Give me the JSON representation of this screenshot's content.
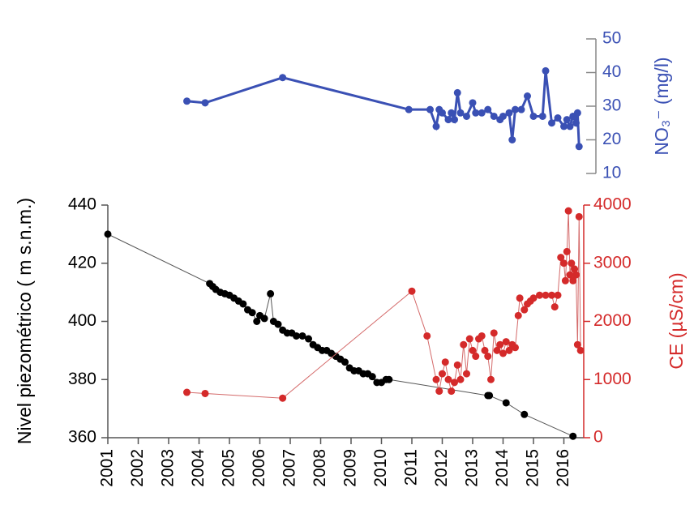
{
  "chart_data": [
    {
      "type": "line",
      "y_label": "NO₃⁻ (mg/l)",
      "xlim": [
        2001,
        2016.6
      ],
      "ylim": [
        10,
        50
      ],
      "yticks": [
        10,
        20,
        30,
        40,
        50
      ],
      "series": [
        {
          "name": "NO₃⁻",
          "color": "#3a50b4",
          "x": [
            2003.6,
            2004.2,
            2006.75,
            2010.9,
            2011.6,
            2011.8,
            2011.9,
            2012.0,
            2012.2,
            2012.3,
            2012.4,
            2012.5,
            2012.6,
            2012.8,
            2013.0,
            2013.1,
            2013.3,
            2013.5,
            2013.7,
            2013.9,
            2014.0,
            2014.2,
            2014.3,
            2014.4,
            2014.6,
            2014.8,
            2015.0,
            2015.3,
            2015.4,
            2015.6,
            2015.8,
            2016.0,
            2016.1,
            2016.2,
            2016.3,
            2016.4,
            2016.45,
            2016.5
          ],
          "values": [
            31.5,
            31,
            38.5,
            29,
            29,
            24,
            29,
            28,
            26,
            28,
            26,
            34,
            28,
            27,
            31,
            28,
            28,
            29,
            27,
            26,
            27,
            28,
            20,
            29,
            29,
            33,
            27,
            27,
            40.5,
            25,
            26.5,
            24,
            26,
            24,
            27,
            25,
            28,
            18
          ]
        }
      ]
    },
    {
      "type": "line",
      "y_label": "Nivel piezométrico ( m s.n.m.)",
      "y2_label": "CE (µS/cm)",
      "xlim": [
        2001,
        2016.6
      ],
      "xticks": [
        2001,
        2002,
        2003,
        2004,
        2005,
        2006,
        2007,
        2008,
        2009,
        2010,
        2011,
        2012,
        2013,
        2014,
        2015,
        2016
      ],
      "ylim": [
        360,
        440
      ],
      "yticks": [
        360,
        380,
        400,
        420,
        440
      ],
      "y2lim": [
        0,
        4000
      ],
      "y2ticks": [
        0,
        1000,
        2000,
        3000,
        4000
      ],
      "series": [
        {
          "name": "Nivel piezométrico",
          "color": "#000000",
          "line_color": "#555555",
          "x": [
            2001.0,
            2004.35,
            2004.45,
            2004.55,
            2004.7,
            2004.85,
            2005.0,
            2005.15,
            2005.3,
            2005.45,
            2005.6,
            2005.75,
            2005.9,
            2006.0,
            2006.15,
            2006.35,
            2006.45,
            2006.6,
            2006.75,
            2006.9,
            2007.05,
            2007.2,
            2007.4,
            2007.6,
            2007.75,
            2007.9,
            2008.05,
            2008.2,
            2008.35,
            2008.5,
            2008.65,
            2008.8,
            2008.95,
            2009.1,
            2009.25,
            2009.4,
            2009.55,
            2009.7,
            2009.85,
            2010.0,
            2010.15,
            2010.25,
            2013.5,
            2013.55,
            2014.1,
            2014.7,
            2016.3
          ],
          "values": [
            430,
            413,
            412,
            411,
            410,
            409.5,
            409,
            408,
            407,
            406,
            404,
            403,
            400,
            402,
            401,
            409.5,
            400,
            399,
            397,
            396,
            396,
            395,
            395,
            394,
            392,
            391,
            390,
            390,
            389,
            388,
            387,
            386,
            384,
            383,
            383,
            382,
            382,
            381,
            379,
            379,
            380,
            380,
            374.5,
            374.5,
            372,
            368,
            360.5
          ]
        },
        {
          "name": "CE",
          "color": "#d42a2a",
          "line_color": "#d46a6a",
          "axis": "y2",
          "x": [
            2003.6,
            2004.2,
            2006.75,
            2011.0,
            2011.5,
            2011.8,
            2011.9,
            2012.0,
            2012.1,
            2012.2,
            2012.3,
            2012.4,
            2012.5,
            2012.6,
            2012.7,
            2012.8,
            2012.9,
            2013.0,
            2013.1,
            2013.2,
            2013.3,
            2013.4,
            2013.5,
            2013.6,
            2013.7,
            2013.8,
            2013.9,
            2014.0,
            2014.1,
            2014.2,
            2014.3,
            2014.4,
            2014.5,
            2014.55,
            2014.7,
            2014.8,
            2014.9,
            2015.0,
            2015.2,
            2015.4,
            2015.6,
            2015.7,
            2015.8,
            2015.9,
            2016.0,
            2016.05,
            2016.1,
            2016.15,
            2016.2,
            2016.25,
            2016.3,
            2016.35,
            2016.4,
            2016.45,
            2016.5,
            2016.55
          ],
          "values": [
            780,
            760,
            680,
            2520,
            1750,
            1000,
            800,
            1100,
            1300,
            1000,
            800,
            950,
            1250,
            1000,
            1600,
            1100,
            1700,
            1500,
            1400,
            1700,
            1750,
            1500,
            1400,
            1000,
            1800,
            1500,
            1600,
            1450,
            1650,
            1500,
            1600,
            1550,
            2100,
            2400,
            2200,
            2300,
            2350,
            2400,
            2450,
            2450,
            2450,
            2250,
            2450,
            3100,
            3000,
            2700,
            3200,
            3900,
            2800,
            3000,
            2700,
            2900,
            2800,
            1600,
            3800,
            1500
          ]
        }
      ]
    }
  ]
}
